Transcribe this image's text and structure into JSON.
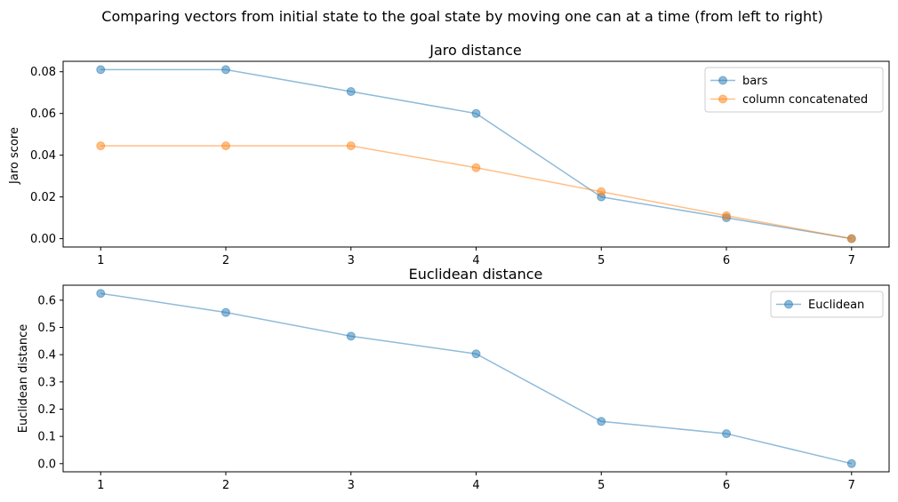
{
  "figure": {
    "suptitle": "Comparing vectors from initial state to the goal state by moving one can at a time (from left to right)"
  },
  "colors": {
    "blue": "#1f77b4",
    "orange": "#ff7f0e",
    "axis": "#000000",
    "legend_border": "#cccccc"
  },
  "chart_data": [
    {
      "type": "line",
      "title": "Jaro distance",
      "xlabel": "",
      "ylabel": "Jaro score",
      "x": [
        1,
        2,
        3,
        4,
        5,
        6,
        7
      ],
      "xticks": [
        "1",
        "2",
        "3",
        "4",
        "5",
        "6",
        "7"
      ],
      "yticks": [
        "0.00",
        "0.02",
        "0.04",
        "0.06",
        "0.08"
      ],
      "xlim": [
        0.7,
        7.3
      ],
      "ylim": [
        -0.004,
        0.085
      ],
      "grid": false,
      "legend_position": "top-right",
      "series": [
        {
          "name": "bars",
          "color": "#1f77b4",
          "values": [
            0.081,
            0.081,
            0.0705,
            0.06,
            0.02,
            0.01,
            0.0
          ]
        },
        {
          "name": "column concatenated",
          "color": "#ff7f0e",
          "values": [
            0.0445,
            0.0445,
            0.0445,
            0.034,
            0.0225,
            0.011,
            0.0
          ]
        }
      ]
    },
    {
      "type": "line",
      "title": "Euclidean distance",
      "xlabel": "",
      "ylabel": "Euclidean distance",
      "x": [
        1,
        2,
        3,
        4,
        5,
        6,
        7
      ],
      "xticks": [
        "1",
        "2",
        "3",
        "4",
        "5",
        "6",
        "7"
      ],
      "yticks": [
        "0.0",
        "0.1",
        "0.2",
        "0.3",
        "0.4",
        "0.5",
        "0.6"
      ],
      "xlim": [
        0.7,
        7.3
      ],
      "ylim": [
        -0.03,
        0.655
      ],
      "grid": false,
      "legend_position": "top-right",
      "series": [
        {
          "name": "Euclidean",
          "color": "#1f77b4",
          "values": [
            0.625,
            0.555,
            0.468,
            0.403,
            0.155,
            0.11,
            0.0
          ]
        }
      ]
    }
  ]
}
